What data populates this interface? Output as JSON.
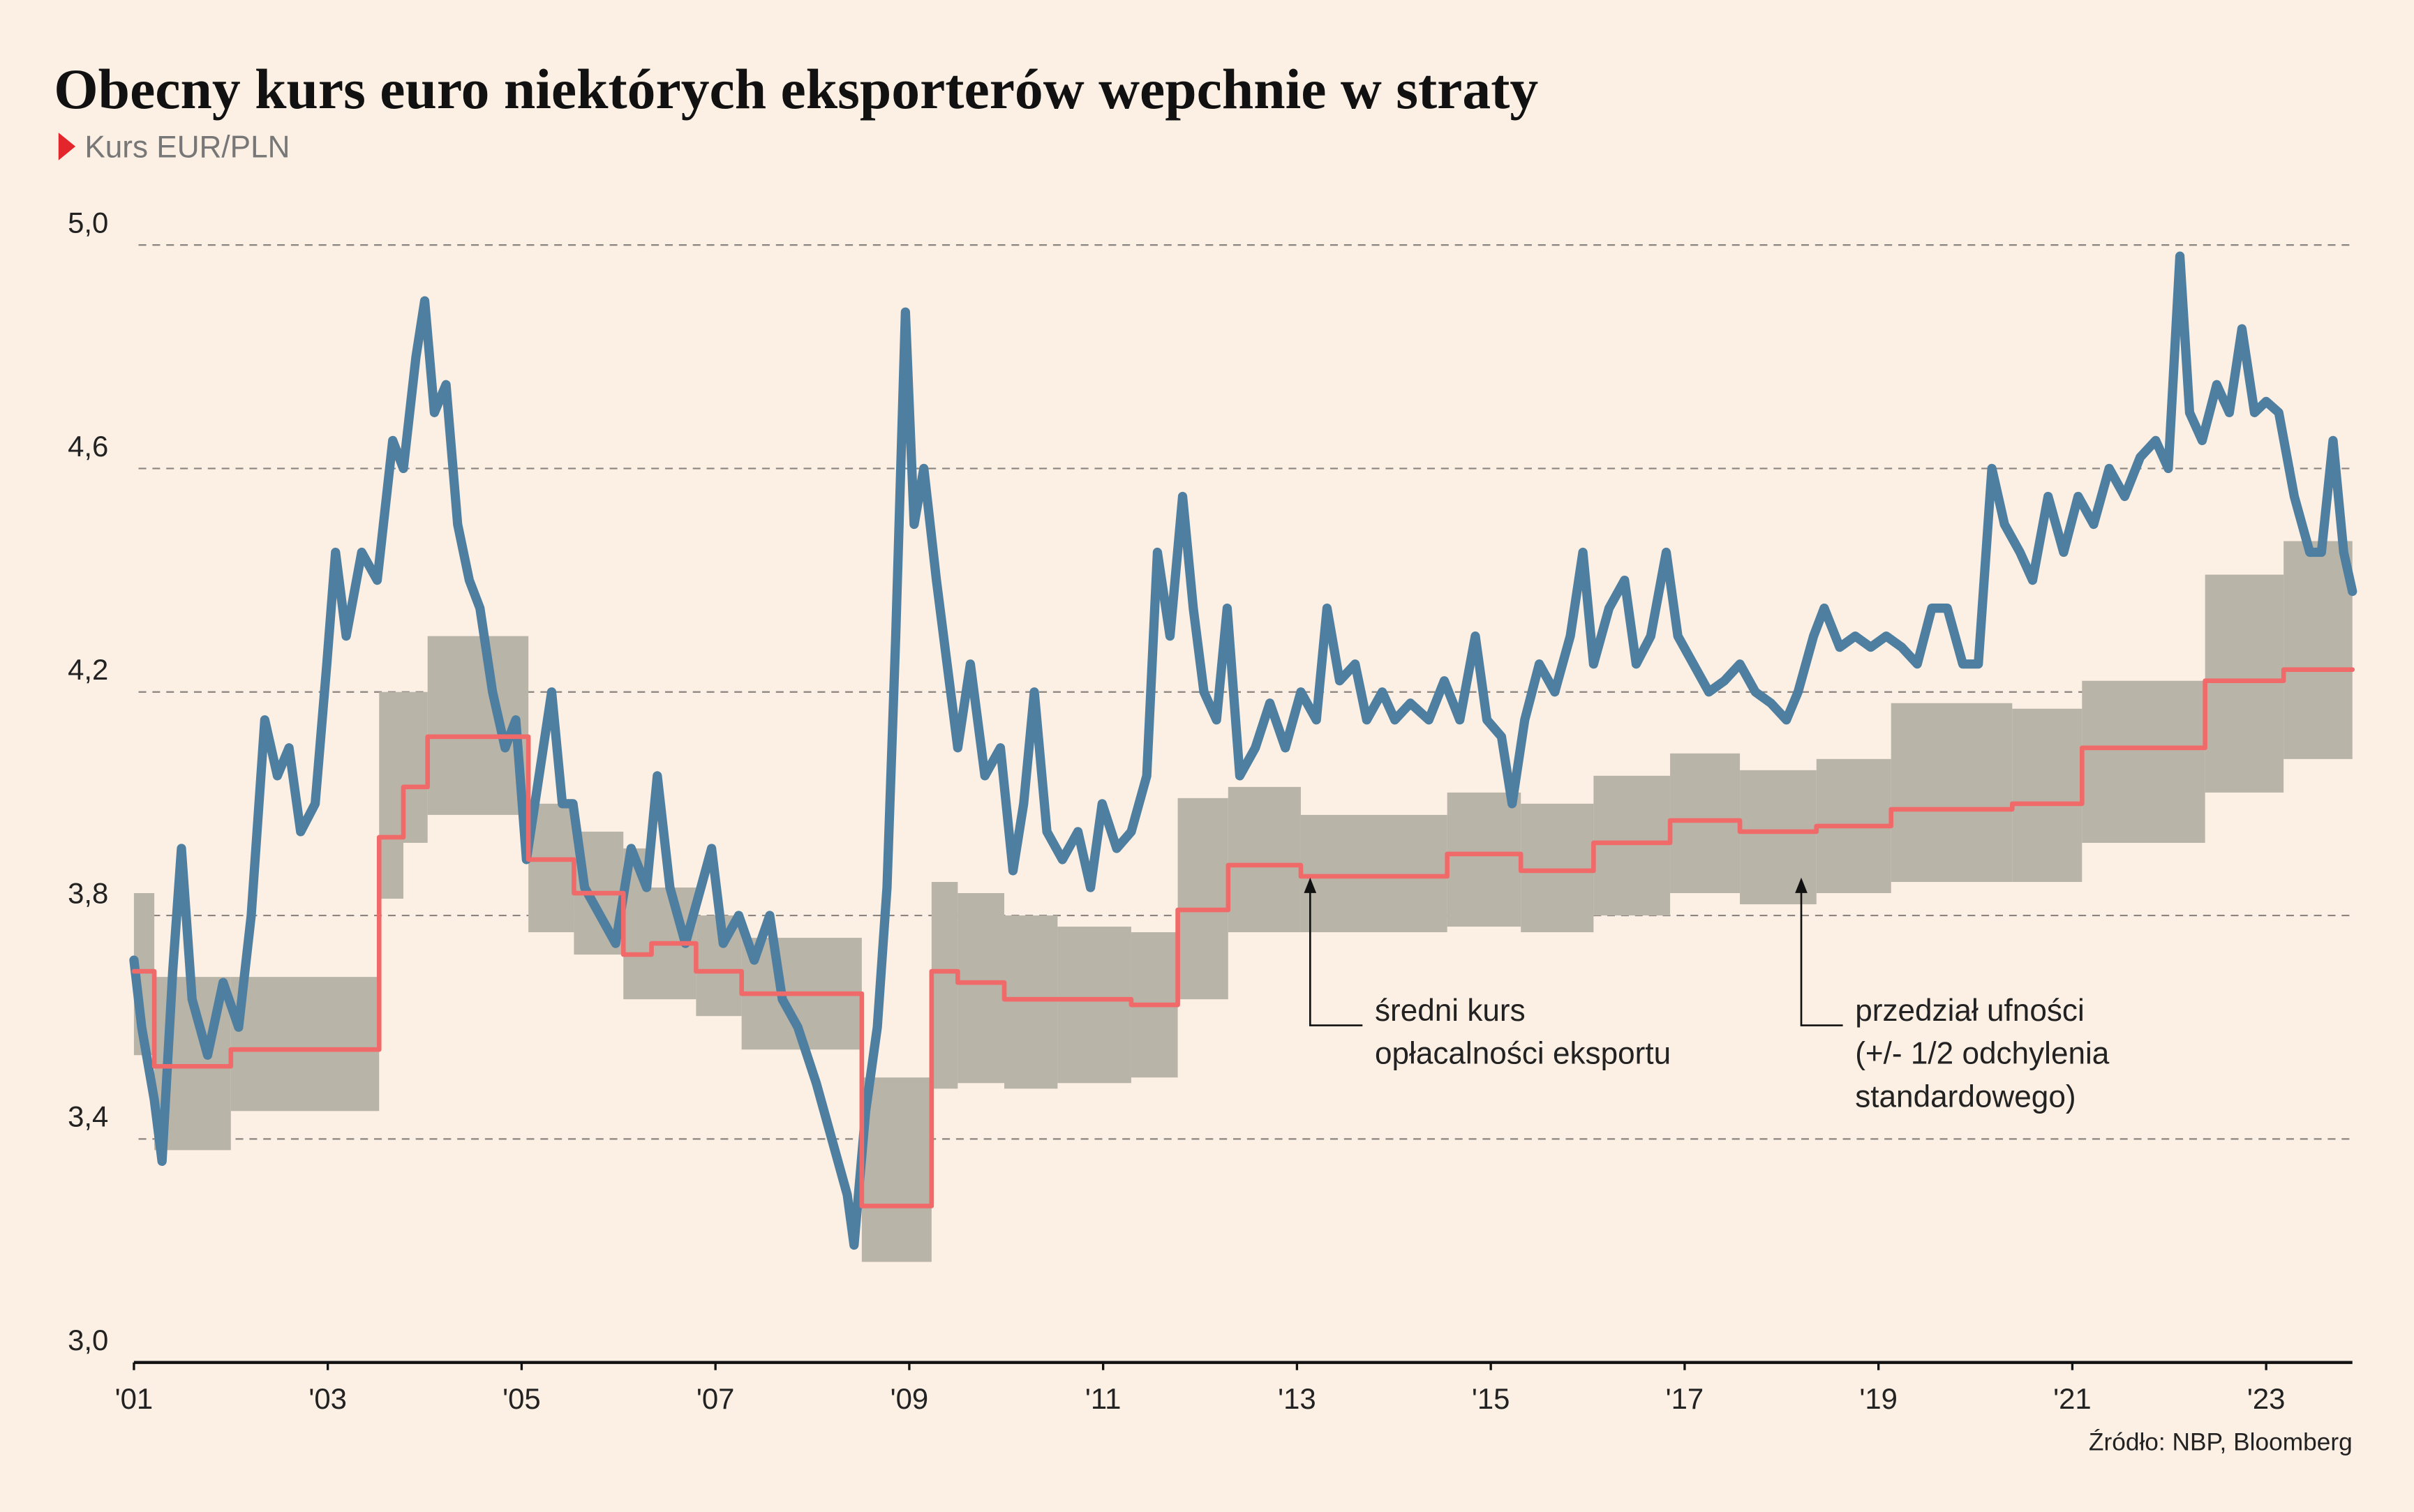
{
  "chart_data": {
    "type": "line",
    "title": "Obecny kurs euro niektórych eksporterów wepchnie w straty",
    "subtitle": "Kurs EUR/PLN",
    "source": "Źródło: NBP, Bloomberg",
    "xlim": [
      2001,
      2023.89
    ],
    "xticks": [
      {
        "value": 2001,
        "label": "'01"
      },
      {
        "value": 2003,
        "label": "'03"
      },
      {
        "value": 2005,
        "label": "'05"
      },
      {
        "value": 2007,
        "label": "'07"
      },
      {
        "value": 2009,
        "label": "'09"
      },
      {
        "value": 2011,
        "label": "'11"
      },
      {
        "value": 2013,
        "label": "'13"
      },
      {
        "value": 2015,
        "label": "'15"
      },
      {
        "value": 2017,
        "label": "'17"
      },
      {
        "value": 2019,
        "label": "'19"
      },
      {
        "value": 2021,
        "label": "'21"
      },
      {
        "value": 2023,
        "label": "'23"
      }
    ],
    "ylim": [
      3.0,
      5.0
    ],
    "yticks": [
      {
        "value": 3.0,
        "label": "3,0"
      },
      {
        "value": 3.4,
        "label": "3,4"
      },
      {
        "value": 3.8,
        "label": "3,8"
      },
      {
        "value": 4.2,
        "label": "4,2"
      },
      {
        "value": 4.6,
        "label": "4,6"
      },
      {
        "value": 5.0,
        "label": "5,0"
      }
    ],
    "grid": true,
    "series": [
      {
        "color": "#4f7fa0",
        "x": [
          2001.0,
          2001.08,
          2001.21,
          2001.29,
          2001.4,
          2001.49,
          2001.6,
          2001.76,
          2001.92,
          2002.08,
          2002.21,
          2002.35,
          2002.48,
          2002.6,
          2002.72,
          2002.87,
          2002.99,
          2003.08,
          2003.19,
          2003.35,
          2003.51,
          2003.67,
          2003.78,
          2003.91,
          2004.0,
          2004.1,
          2004.22,
          2004.34,
          2004.46,
          2004.57,
          2004.7,
          2004.83,
          2004.94,
          2005.05,
          2005.18,
          2005.31,
          2005.42,
          2005.53,
          2005.65,
          2005.81,
          2005.97,
          2006.13,
          2006.29,
          2006.4,
          2006.53,
          2006.69,
          2006.85,
          2006.96,
          2007.08,
          2007.24,
          2007.4,
          2007.56,
          2007.69,
          2007.85,
          2008.04,
          2008.2,
          2008.36,
          2008.43,
          2008.55,
          2008.67,
          2008.77,
          2008.86,
          2008.96,
          2009.05,
          2009.15,
          2009.28,
          2009.39,
          2009.5,
          2009.63,
          2009.78,
          2009.94,
          2010.07,
          2010.18,
          2010.29,
          2010.42,
          2010.58,
          2010.74,
          2010.87,
          2010.99,
          2011.14,
          2011.29,
          2011.45,
          2011.56,
          2011.69,
          2011.82,
          2011.93,
          2012.04,
          2012.17,
          2012.28,
          2012.41,
          2012.57,
          2012.72,
          2012.88,
          2013.04,
          2013.2,
          2013.31,
          2013.44,
          2013.6,
          2013.72,
          2013.88,
          2014.01,
          2014.17,
          2014.36,
          2014.52,
          2014.68,
          2014.84,
          2014.96,
          2015.11,
          2015.22,
          2015.35,
          2015.5,
          2015.66,
          2015.82,
          2015.95,
          2016.06,
          2016.22,
          2016.38,
          2016.5,
          2016.65,
          2016.81,
          2016.93,
          2017.09,
          2017.25,
          2017.41,
          2017.57,
          2017.73,
          2017.89,
          2018.05,
          2018.17,
          2018.33,
          2018.44,
          2018.6,
          2018.76,
          2018.92,
          2019.08,
          2019.24,
          2019.4,
          2019.55,
          2019.71,
          2019.87,
          2020.03,
          2020.17,
          2020.3,
          2020.46,
          2020.59,
          2020.75,
          2020.91,
          2021.06,
          2021.22,
          2021.38,
          2021.54,
          2021.7,
          2021.86,
          2021.99,
          2022.11,
          2022.21,
          2022.34,
          2022.49,
          2022.62,
          2022.75,
          2022.88,
          2023.0,
          2023.13,
          2023.29,
          2023.45,
          2023.57,
          2023.69,
          2023.8,
          2023.89
        ],
        "values": [
          3.72,
          3.6,
          3.47,
          3.36,
          3.7,
          3.92,
          3.65,
          3.55,
          3.68,
          3.6,
          3.8,
          4.15,
          4.05,
          4.1,
          3.95,
          4.0,
          4.25,
          4.45,
          4.3,
          4.45,
          4.4,
          4.65,
          4.6,
          4.8,
          4.9,
          4.7,
          4.75,
          4.5,
          4.4,
          4.35,
          4.2,
          4.1,
          4.15,
          3.9,
          4.05,
          4.2,
          4.0,
          4.0,
          3.85,
          3.8,
          3.75,
          3.92,
          3.85,
          4.05,
          3.85,
          3.75,
          3.85,
          3.92,
          3.75,
          3.8,
          3.72,
          3.8,
          3.65,
          3.6,
          3.5,
          3.4,
          3.3,
          3.21,
          3.45,
          3.6,
          3.85,
          4.3,
          4.88,
          4.5,
          4.6,
          4.4,
          4.25,
          4.1,
          4.25,
          4.05,
          4.1,
          3.88,
          4.0,
          4.2,
          3.95,
          3.9,
          3.95,
          3.85,
          4.0,
          3.92,
          3.95,
          4.05,
          4.45,
          4.3,
          4.55,
          4.35,
          4.2,
          4.15,
          4.35,
          4.05,
          4.1,
          4.18,
          4.1,
          4.2,
          4.15,
          4.35,
          4.22,
          4.25,
          4.15,
          4.2,
          4.15,
          4.18,
          4.15,
          4.22,
          4.15,
          4.3,
          4.15,
          4.12,
          4.0,
          4.15,
          4.25,
          4.2,
          4.3,
          4.45,
          4.25,
          4.35,
          4.4,
          4.25,
          4.3,
          4.45,
          4.3,
          4.25,
          4.2,
          4.22,
          4.25,
          4.2,
          4.18,
          4.15,
          4.2,
          4.3,
          4.35,
          4.28,
          4.3,
          4.28,
          4.3,
          4.28,
          4.25,
          4.35,
          4.35,
          4.25,
          4.25,
          4.6,
          4.5,
          4.45,
          4.4,
          4.55,
          4.45,
          4.55,
          4.5,
          4.6,
          4.55,
          4.62,
          4.65,
          4.6,
          4.98,
          4.7,
          4.65,
          4.75,
          4.7,
          4.85,
          4.7,
          4.72,
          4.7,
          4.55,
          4.45,
          4.45,
          4.65,
          4.45,
          4.38
        ]
      },
      {
        "color": "#f06a6a",
        "step": true,
        "band_color": "#b9b4a8",
        "x": [
          2001.0,
          2001.21,
          2002.0,
          2003.53,
          2003.78,
          2004.03,
          2005.07,
          2005.54,
          2006.05,
          2006.34,
          2006.8,
          2007.27,
          2008.51,
          2009.23,
          2009.5,
          2009.98,
          2010.53,
          2011.29,
          2011.77,
          2012.29,
          2013.04,
          2014.55,
          2015.31,
          2016.06,
          2016.85,
          2017.57,
          2018.36,
          2019.13,
          2020.38,
          2021.1,
          2022.37,
          2023.18,
          2023.89
        ],
        "values": [
          3.7,
          3.53,
          3.56,
          3.94,
          4.03,
          4.12,
          3.9,
          3.84,
          3.73,
          3.75,
          3.7,
          3.66,
          3.28,
          3.7,
          3.68,
          3.65,
          3.65,
          3.64,
          3.81,
          3.89,
          3.87,
          3.91,
          3.88,
          3.93,
          3.97,
          3.95,
          3.96,
          3.99,
          4.0,
          4.1,
          4.22,
          4.24,
          4.24
        ],
        "upper": [
          3.84,
          3.69,
          3.69,
          4.2,
          4.2,
          4.3,
          4.0,
          3.95,
          3.92,
          3.85,
          3.8,
          3.76,
          3.51,
          3.86,
          3.84,
          3.8,
          3.78,
          3.77,
          4.01,
          4.03,
          3.98,
          4.02,
          4.0,
          4.05,
          4.09,
          4.06,
          4.08,
          4.18,
          4.17,
          4.22,
          4.41,
          4.47,
          4.47
        ],
        "lower": [
          3.55,
          3.38,
          3.45,
          3.83,
          3.93,
          3.98,
          3.77,
          3.73,
          3.65,
          3.65,
          3.62,
          3.56,
          3.18,
          3.49,
          3.5,
          3.49,
          3.5,
          3.51,
          3.65,
          3.77,
          3.77,
          3.78,
          3.77,
          3.8,
          3.84,
          3.82,
          3.84,
          3.86,
          3.86,
          3.93,
          4.02,
          4.08,
          4.08
        ]
      }
    ],
    "annotations": [
      {
        "lines": [
          "średni kurs",
          "opłacalności eksportu"
        ]
      },
      {
        "lines": [
          "przedział ufności",
          "(+/- 1/2 odchylenia",
          "standardowego)"
        ]
      }
    ]
  }
}
